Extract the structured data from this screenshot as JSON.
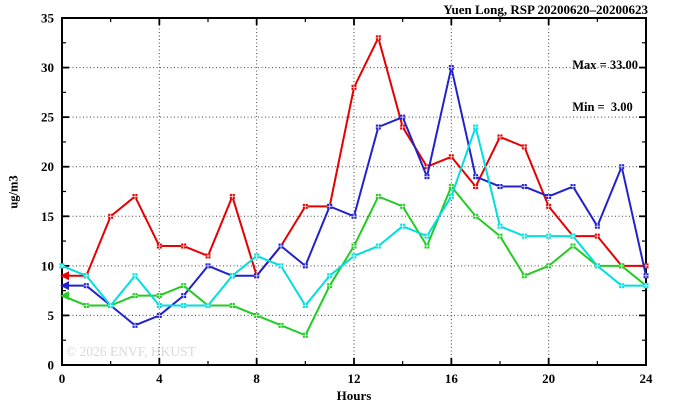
{
  "chart_data": {
    "type": "line",
    "title": "Yuen Long, RSP 20200620–20200623",
    "xlabel": "Hours",
    "ylabel": "ug/m3",
    "xlim": [
      0,
      24
    ],
    "ylim": [
      0,
      35
    ],
    "x_major_ticks": [
      0,
      4,
      8,
      12,
      16,
      20,
      24
    ],
    "x_minor_ticks": [
      2,
      6,
      10,
      14,
      18,
      22
    ],
    "y_major_ticks": [
      0,
      5,
      10,
      15,
      20,
      25,
      30,
      35
    ],
    "y_minor_ticks": [
      2.5,
      7.5,
      12.5,
      17.5,
      22.5,
      27.5,
      32.5
    ],
    "grid": "dotted lines at major ticks, boxed axes with mirrored inward ticks",
    "legend_position": "inside top-right",
    "x": [
      0,
      1,
      2,
      3,
      4,
      5,
      6,
      7,
      8,
      9,
      10,
      11,
      12,
      13,
      14,
      15,
      16,
      17,
      18,
      19,
      20,
      21,
      22,
      23,
      24
    ],
    "series": [
      {
        "name": "series-red",
        "color": "#e60000",
        "start_arrow": true,
        "values": [
          9,
          9,
          15,
          17,
          12,
          12,
          11,
          17,
          9,
          12,
          16,
          16,
          28,
          33,
          24,
          20,
          21,
          18,
          23,
          22,
          16,
          13,
          13,
          10,
          10
        ]
      },
      {
        "name": "series-blue",
        "color": "#2222cc",
        "start_arrow": true,
        "values": [
          8,
          8,
          6,
          4,
          5,
          7,
          10,
          9,
          9,
          12,
          10,
          16,
          15,
          24,
          25,
          19,
          30,
          19,
          18,
          18,
          17,
          18,
          14,
          20,
          9
        ]
      },
      {
        "name": "series-green",
        "color": "#22cc22",
        "start_arrow": true,
        "values": [
          7,
          6,
          6,
          7,
          7,
          8,
          6,
          6,
          5,
          4,
          3,
          8,
          12,
          17,
          16,
          12,
          18,
          15,
          13,
          9,
          10,
          12,
          10,
          10,
          8
        ]
      },
      {
        "name": "series-cyan",
        "color": "#00dede",
        "start_arrow": false,
        "values": [
          10,
          9,
          6,
          9,
          6,
          6,
          6,
          9,
          11,
          10,
          6,
          9,
          11,
          12,
          14,
          13,
          17,
          24,
          14,
          13,
          13,
          13,
          10,
          8,
          8
        ]
      }
    ],
    "annotations": {
      "max_label": "Max = 33.00",
      "min_label": "Min =  3.00",
      "max_value": 33.0,
      "min_value": 3.0
    }
  },
  "watermark": "© 2026 ENVF, HKUST"
}
